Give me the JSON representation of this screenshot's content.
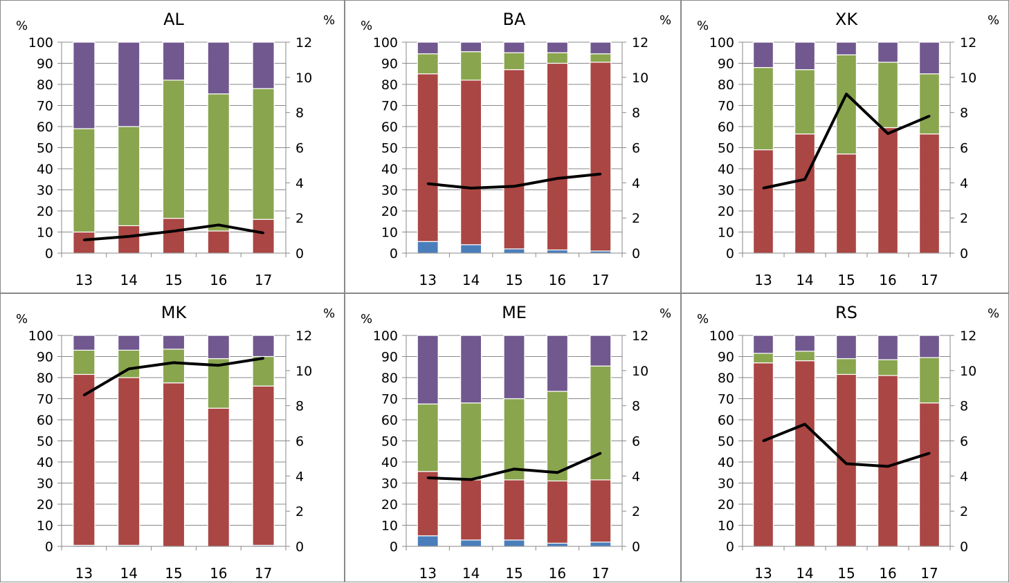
{
  "colors": {
    "blue": "#4a7ebb",
    "red": "#aa4643",
    "green": "#89a54e",
    "purple": "#71588f",
    "line": "#000000",
    "grid": "#878787"
  },
  "chart_data": [
    {
      "type": "bar",
      "stacked": true,
      "title": "AL",
      "ylabel_left": "%",
      "ylabel_right": "%",
      "categories": [
        "13",
        "14",
        "15",
        "16",
        "17"
      ],
      "ylim": [
        0,
        100
      ],
      "y2lim": [
        0,
        12
      ],
      "yticks": [
        "0",
        "10",
        "20",
        "30",
        "40",
        "50",
        "60",
        "70",
        "80",
        "90",
        "100"
      ],
      "y2ticks": [
        "0",
        "2",
        "4",
        "6",
        "8",
        "10",
        "12"
      ],
      "grid": true,
      "series": [
        {
          "color": "blue",
          "values": [
            0,
            0,
            0,
            0,
            0
          ]
        },
        {
          "color": "red",
          "values": [
            10,
            13,
            16.5,
            10.5,
            16
          ]
        },
        {
          "color": "green",
          "values": [
            49,
            47,
            65.5,
            65,
            62
          ]
        },
        {
          "color": "purple",
          "values": [
            41,
            40,
            18,
            24.5,
            22
          ]
        }
      ],
      "line": {
        "axis": "right",
        "values": [
          0.75,
          0.95,
          1.25,
          1.6,
          1.15
        ]
      }
    },
    {
      "type": "bar",
      "stacked": true,
      "title": "BA",
      "ylabel_left": "%",
      "ylabel_right": "%",
      "categories": [
        "13",
        "14",
        "15",
        "16",
        "17"
      ],
      "ylim": [
        0,
        100
      ],
      "y2lim": [
        0,
        12
      ],
      "yticks": [
        "0",
        "10",
        "20",
        "30",
        "40",
        "50",
        "60",
        "70",
        "80",
        "90",
        "100"
      ],
      "y2ticks": [
        "0",
        "2",
        "4",
        "6",
        "8",
        "10",
        "12"
      ],
      "grid": true,
      "series": [
        {
          "color": "blue",
          "values": [
            5.5,
            4,
            2,
            1.5,
            1
          ]
        },
        {
          "color": "red",
          "values": [
            79.5,
            78,
            85,
            88.5,
            89.5
          ]
        },
        {
          "color": "green",
          "values": [
            9.5,
            13.5,
            8,
            5,
            4
          ]
        },
        {
          "color": "purple",
          "values": [
            5.5,
            4.5,
            5,
            5,
            5.5
          ]
        }
      ],
      "line": {
        "axis": "right",
        "values": [
          3.95,
          3.7,
          3.8,
          4.25,
          4.5
        ]
      }
    },
    {
      "type": "bar",
      "stacked": true,
      "title": "XK",
      "ylabel_left": "%",
      "ylabel_right": "%",
      "categories": [
        "13",
        "14",
        "15",
        "16",
        "17"
      ],
      "ylim": [
        0,
        100
      ],
      "y2lim": [
        0,
        12
      ],
      "yticks": [
        "0",
        "10",
        "20",
        "30",
        "40",
        "50",
        "60",
        "70",
        "80",
        "90",
        "100"
      ],
      "y2ticks": [
        "0",
        "2",
        "4",
        "6",
        "8",
        "10",
        "12"
      ],
      "grid": true,
      "series": [
        {
          "color": "blue",
          "values": [
            0,
            0,
            0,
            0,
            0
          ]
        },
        {
          "color": "red",
          "values": [
            49,
            56.5,
            47,
            59.5,
            56.5
          ]
        },
        {
          "color": "green",
          "values": [
            39,
            30.5,
            47,
            31,
            28.5
          ]
        },
        {
          "color": "purple",
          "values": [
            12,
            13,
            6,
            9.5,
            15
          ]
        }
      ],
      "line": {
        "axis": "right",
        "values": [
          3.7,
          4.2,
          9.05,
          6.8,
          7.8
        ]
      }
    },
    {
      "type": "bar",
      "stacked": true,
      "title": "MK",
      "ylabel_left": "%",
      "ylabel_right": "%",
      "categories": [
        "13",
        "14",
        "15",
        "16",
        "17"
      ],
      "ylim": [
        0,
        100
      ],
      "y2lim": [
        0,
        12
      ],
      "yticks": [
        "0",
        "10",
        "20",
        "30",
        "40",
        "50",
        "60",
        "70",
        "80",
        "90",
        "100"
      ],
      "y2ticks": [
        "0",
        "2",
        "4",
        "6",
        "8",
        "10",
        "12"
      ],
      "grid": true,
      "series": [
        {
          "color": "blue",
          "values": [
            0.5,
            0.5,
            0,
            0,
            0.5
          ]
        },
        {
          "color": "red",
          "values": [
            81,
            79.5,
            77.5,
            65.5,
            75.5
          ]
        },
        {
          "color": "green",
          "values": [
            11.5,
            13,
            16,
            23.5,
            14
          ]
        },
        {
          "color": "purple",
          "values": [
            7,
            7,
            6.5,
            11,
            10
          ]
        }
      ],
      "line": {
        "axis": "right",
        "values": [
          8.6,
          10.1,
          10.45,
          10.3,
          10.7
        ]
      }
    },
    {
      "type": "bar",
      "stacked": true,
      "title": "ME",
      "ylabel_left": "%",
      "ylabel_right": "%",
      "categories": [
        "13",
        "14",
        "15",
        "16",
        "17"
      ],
      "ylim": [
        0,
        100
      ],
      "y2lim": [
        0,
        12
      ],
      "yticks": [
        "0",
        "10",
        "20",
        "30",
        "40",
        "50",
        "60",
        "70",
        "80",
        "90",
        "100"
      ],
      "y2ticks": [
        "0",
        "2",
        "4",
        "6",
        "8",
        "10",
        "12"
      ],
      "grid": true,
      "series": [
        {
          "color": "blue",
          "values": [
            5,
            3,
            3,
            1.5,
            2
          ]
        },
        {
          "color": "red",
          "values": [
            30.5,
            28.5,
            28.5,
            29.5,
            29.5
          ]
        },
        {
          "color": "green",
          "values": [
            32,
            36.5,
            38.5,
            42.5,
            54
          ]
        },
        {
          "color": "purple",
          "values": [
            32.5,
            32,
            30,
            26.5,
            14.5
          ]
        }
      ],
      "line": {
        "axis": "right",
        "values": [
          3.9,
          3.8,
          4.4,
          4.2,
          5.3
        ]
      }
    },
    {
      "type": "bar",
      "stacked": true,
      "title": "RS",
      "ylabel_left": "%",
      "ylabel_right": "%",
      "categories": [
        "13",
        "14",
        "15",
        "16",
        "17"
      ],
      "ylim": [
        0,
        100
      ],
      "y2lim": [
        0,
        12
      ],
      "yticks": [
        "0",
        "10",
        "20",
        "30",
        "40",
        "50",
        "60",
        "70",
        "80",
        "90",
        "100"
      ],
      "y2ticks": [
        "0",
        "2",
        "4",
        "6",
        "8",
        "10",
        "12"
      ],
      "grid": true,
      "series": [
        {
          "color": "blue",
          "values": [
            0,
            0,
            0,
            0,
            0
          ]
        },
        {
          "color": "red",
          "values": [
            87,
            88,
            81.5,
            81,
            68
          ]
        },
        {
          "color": "green",
          "values": [
            4.5,
            4.5,
            7.5,
            7.5,
            21.5
          ]
        },
        {
          "color": "purple",
          "values": [
            8.5,
            7.5,
            11,
            11.5,
            10.5
          ]
        }
      ],
      "line": {
        "axis": "right",
        "values": [
          6,
          6.95,
          4.7,
          4.55,
          5.3
        ]
      }
    }
  ]
}
